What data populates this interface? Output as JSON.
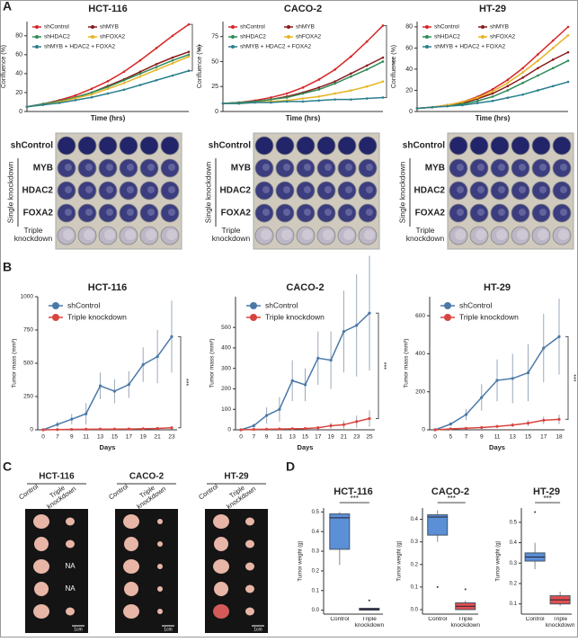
{
  "panel_labels": [
    "A",
    "B",
    "C",
    "D"
  ],
  "chart_data": [
    {
      "type": "line",
      "panel": "A",
      "title": "HCT-116",
      "xlabel": "Time (hrs)",
      "ylabel": "Confluence (%)",
      "annotation": "***",
      "x": [
        0,
        12,
        24,
        36,
        48,
        60,
        72,
        84,
        96,
        108,
        120
      ],
      "xlim": [
        0,
        120
      ],
      "ylim": [
        0,
        95
      ],
      "yticks": [
        0,
        20,
        40,
        60,
        80
      ],
      "legend": "upper left",
      "series": [
        {
          "name": "shControl",
          "color": "#d62728",
          "values": [
            5,
            8,
            12,
            17,
            24,
            32,
            42,
            54,
            67,
            80,
            92
          ]
        },
        {
          "name": "shMYB",
          "color": "#8b1a1a",
          "values": [
            5,
            8,
            11,
            15,
            20,
            27,
            34,
            42,
            50,
            57,
            63
          ]
        },
        {
          "name": "shHDAC2",
          "color": "#2e8b57",
          "values": [
            5,
            8,
            11,
            15,
            20,
            26,
            33,
            40,
            47,
            54,
            60
          ]
        },
        {
          "name": "shFOXA2",
          "color": "#e6b422",
          "values": [
            5,
            7,
            10,
            14,
            18,
            24,
            30,
            37,
            44,
            51,
            58
          ]
        },
        {
          "name": "shMYB + HDAC2 + FOXA2",
          "color": "#2a7f8f",
          "values": [
            5,
            7,
            9,
            12,
            15,
            19,
            23,
            28,
            33,
            38,
            43
          ]
        }
      ]
    },
    {
      "type": "line",
      "panel": "A",
      "title": "CACO-2",
      "xlabel": "Time (hrs)",
      "ylabel": "Confluence (%)",
      "annotation": "***",
      "x": [
        0,
        12,
        24,
        36,
        48,
        60,
        72,
        84,
        96,
        108,
        120
      ],
      "xlim": [
        0,
        120
      ],
      "ylim": [
        0,
        90
      ],
      "yticks": [
        0,
        25,
        50,
        75
      ],
      "legend": "upper left",
      "series": [
        {
          "name": "shControl",
          "color": "#d62728",
          "values": [
            8,
            9,
            11,
            14,
            18,
            24,
            32,
            42,
            55,
            70,
            86
          ]
        },
        {
          "name": "shMYB",
          "color": "#8b1a1a",
          "values": [
            8,
            9,
            10,
            12,
            15,
            19,
            24,
            30,
            38,
            46,
            54
          ]
        },
        {
          "name": "shHDAC2",
          "color": "#2e8b57",
          "values": [
            8,
            9,
            10,
            12,
            14,
            18,
            22,
            28,
            35,
            42,
            50
          ]
        },
        {
          "name": "shFOXA2",
          "color": "#e6b422",
          "values": [
            8,
            8,
            9,
            10,
            11,
            13,
            15,
            18,
            21,
            25,
            30
          ]
        },
        {
          "name": "shMYB + HDAC2 + FOXA2",
          "color": "#2a7f8f",
          "values": [
            8,
            8,
            9,
            9,
            10,
            10,
            11,
            12,
            12,
            13,
            14
          ]
        }
      ]
    },
    {
      "type": "line",
      "panel": "A",
      "title": "HT-29",
      "xlabel": "Time (hrs)",
      "ylabel": "Confluence (%)",
      "x": [
        0,
        12,
        24,
        36,
        48,
        60,
        72,
        84,
        96,
        108,
        120
      ],
      "xlim": [
        0,
        120
      ],
      "ylim": [
        0,
        85
      ],
      "yticks": [
        0,
        20,
        40,
        60,
        80
      ],
      "legend": "upper left",
      "series": [
        {
          "name": "shControl",
          "color": "#d62728",
          "values": [
            3,
            4,
            6,
            9,
            14,
            21,
            30,
            41,
            54,
            67,
            80
          ]
        },
        {
          "name": "shMYB",
          "color": "#8b1a1a",
          "values": [
            3,
            4,
            6,
            8,
            12,
            17,
            24,
            32,
            41,
            49,
            56
          ]
        },
        {
          "name": "shHDAC2",
          "color": "#2e8b57",
          "values": [
            3,
            4,
            5,
            7,
            10,
            14,
            20,
            27,
            34,
            41,
            48
          ]
        },
        {
          "name": "shFOXA2",
          "color": "#e6b422",
          "values": [
            3,
            4,
            6,
            9,
            13,
            19,
            27,
            37,
            48,
            60,
            72
          ]
        },
        {
          "name": "shMYB + HDAC2 + FOXA2",
          "color": "#2a7f8f",
          "values": [
            3,
            4,
            5,
            6,
            8,
            10,
            13,
            16,
            20,
            24,
            28
          ]
        }
      ]
    },
    {
      "type": "errorline",
      "panel": "B",
      "title": "HCT-116",
      "xlabel": "Days",
      "ylabel": "Tumor mass (mm³)",
      "annotation": "***",
      "categories": [
        "0",
        "7",
        "9",
        "11",
        "13",
        "15",
        "17",
        "19",
        "21",
        "23"
      ],
      "ylim": [
        0,
        1000
      ],
      "yticks": [
        0,
        250,
        500,
        750,
        1000
      ],
      "legend": "upper left",
      "series": [
        {
          "name": "shControl",
          "color": "#4a78a8",
          "values": [
            0,
            40,
            80,
            120,
            330,
            290,
            340,
            490,
            550,
            700
          ],
          "errors": [
            0,
            20,
            40,
            80,
            100,
            90,
            100,
            130,
            200,
            270
          ]
        },
        {
          "name": "Triple knockdown",
          "color": "#d9443f",
          "values": [
            0,
            2,
            3,
            4,
            5,
            5,
            6,
            8,
            10,
            15
          ],
          "errors": [
            0,
            1,
            2,
            2,
            3,
            3,
            4,
            5,
            6,
            8
          ]
        }
      ]
    },
    {
      "type": "errorline",
      "panel": "B",
      "title": "CACO-2",
      "xlabel": "Days",
      "ylabel": "Tumor mass (mm³)",
      "annotation": "***",
      "categories": [
        "0",
        "7",
        "9",
        "11",
        "13",
        "15",
        "17",
        "19",
        "21",
        "23",
        "25"
      ],
      "ylim": [
        0,
        650
      ],
      "yticks": [
        0,
        100,
        200,
        300,
        400,
        500
      ],
      "legend": "upper left",
      "series": [
        {
          "name": "shControl",
          "color": "#4a78a8",
          "values": [
            0,
            20,
            70,
            100,
            240,
            220,
            350,
            340,
            480,
            510,
            570
          ],
          "errors": [
            0,
            10,
            40,
            60,
            100,
            80,
            130,
            140,
            200,
            250,
            280
          ]
        },
        {
          "name": "Triple knockdown",
          "color": "#d9443f",
          "values": [
            0,
            2,
            3,
            4,
            5,
            6,
            10,
            20,
            25,
            40,
            55
          ],
          "errors": [
            0,
            1,
            2,
            2,
            3,
            4,
            8,
            15,
            20,
            30,
            40
          ]
        }
      ]
    },
    {
      "type": "errorline",
      "panel": "B",
      "title": "HT-29",
      "xlabel": "Days",
      "ylabel": "Tumor mass (mm³)",
      "annotation": "***",
      "categories": [
        "0",
        "5",
        "7",
        "9",
        "11",
        "13",
        "15",
        "17",
        "18"
      ],
      "ylim": [
        0,
        700
      ],
      "yticks": [
        0,
        200,
        400,
        600
      ],
      "legend": "upper left",
      "series": [
        {
          "name": "shControl",
          "color": "#4a78a8",
          "values": [
            0,
            30,
            80,
            170,
            260,
            270,
            300,
            430,
            490
          ],
          "errors": [
            0,
            10,
            30,
            70,
            110,
            130,
            150,
            180,
            200
          ]
        },
        {
          "name": "Triple knockdown",
          "color": "#d9443f",
          "values": [
            0,
            5,
            8,
            12,
            18,
            25,
            35,
            50,
            55
          ],
          "errors": [
            0,
            3,
            4,
            6,
            8,
            10,
            15,
            20,
            25
          ]
        }
      ]
    },
    {
      "type": "box",
      "panel": "D",
      "title": "HCT-116",
      "ylabel": "Tumor weight (g)",
      "annotation": "***",
      "categories": [
        "Control",
        "Triple knockdown"
      ],
      "ylim": [
        -0.02,
        0.52
      ],
      "yticks": [
        {
          "value": 0,
          "label": "0.0"
        },
        0.1,
        0.2,
        0.3,
        0.4,
        0.5
      ],
      "colors": [
        "#5b8fd6",
        "#e05050"
      ],
      "boxes": [
        {
          "min": 0.23,
          "q1": 0.31,
          "median": 0.47,
          "q3": 0.49,
          "max": 0.5
        },
        {
          "min": 0,
          "q1": 0,
          "median": 0.005,
          "q3": 0.01,
          "max": 0.01,
          "outliers": [
            0.05
          ]
        }
      ]
    },
    {
      "type": "box",
      "panel": "D",
      "title": "CACO-2",
      "ylabel": "Tumor weight (g)",
      "annotation": "***",
      "categories": [
        "Control",
        "Triple knockdown"
      ],
      "ylim": [
        -0.02,
        0.45
      ],
      "yticks": [
        {
          "value": 0,
          "label": "0.0"
        },
        0.1,
        0.2,
        0.3,
        0.4
      ],
      "colors": [
        "#5b8fd6",
        "#e05050"
      ],
      "boxes": [
        {
          "min": 0.3,
          "q1": 0.33,
          "median": 0.41,
          "q3": 0.42,
          "max": 0.44,
          "outliers": [
            0.1
          ]
        },
        {
          "min": 0,
          "q1": 0,
          "median": 0.015,
          "q3": 0.03,
          "max": 0.04,
          "outliers": [
            0.09
          ]
        }
      ]
    },
    {
      "type": "box",
      "panel": "D",
      "title": "HT-29",
      "ylabel": "Tumor weight (g)",
      "annotation": "***",
      "categories": [
        "Control",
        "Triple knockdown"
      ],
      "ylim": [
        0.05,
        0.57
      ],
      "yticks": [
        0.1,
        0.2,
        0.3,
        0.4,
        0.5
      ],
      "colors": [
        "#5b8fd6",
        "#e05050"
      ],
      "boxes": [
        {
          "min": 0.27,
          "q1": 0.31,
          "median": 0.33,
          "q3": 0.35,
          "max": 0.4,
          "outliers": [
            0.55
          ]
        },
        {
          "min": 0.09,
          "q1": 0.1,
          "median": 0.12,
          "q3": 0.14,
          "max": 0.16
        }
      ]
    }
  ],
  "plates": [
    {
      "rows": [
        "shControl",
        "MYB",
        "HDAC2",
        "FOXA2",
        "Triple knockdown"
      ],
      "group": "Single knockdown"
    },
    {
      "rows": [
        "shControl",
        "MYB",
        "HDAC2",
        "FOXA2",
        "Triple knockdown"
      ],
      "group": "Single knockdown"
    },
    {
      "rows": [
        "shControl",
        "MYB",
        "HDAC2",
        "FOXA2",
        "Triple knockdown"
      ],
      "group": "Single knockdown"
    }
  ],
  "photos": [
    {
      "title": "HCT-116",
      "columns": [
        "Control",
        "Triple knockdown"
      ],
      "notes": [
        "NA",
        "NA"
      ],
      "scale": "1cm"
    },
    {
      "title": "CACO-2",
      "columns": [
        "Control",
        "Triple knockdown"
      ],
      "scale": "1cm"
    },
    {
      "title": "HT-29",
      "columns": [
        "Control",
        "Triple knockdown"
      ],
      "scale": "1cm"
    }
  ]
}
